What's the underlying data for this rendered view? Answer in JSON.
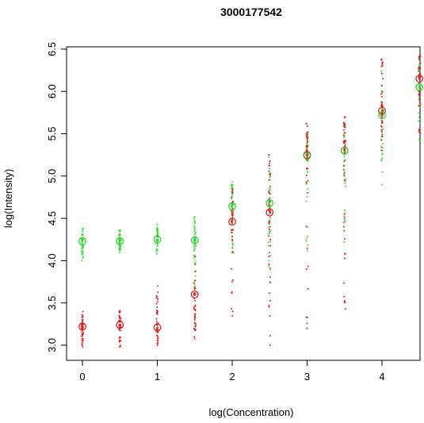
{
  "chart_data": {
    "type": "scatter",
    "title": "3000177542",
    "xlabel": "log(Concentration)",
    "ylabel": "log(Intensity)",
    "xlim": [
      -0.12,
      4.62
    ],
    "ylim": [
      2.93,
      6.5
    ],
    "x_ticks": [
      0,
      1,
      2,
      3,
      4
    ],
    "y_ticks": [
      3.0,
      3.5,
      4.0,
      4.5,
      5.0,
      5.5,
      6.0,
      6.5
    ],
    "x_tick_labels": [
      "0",
      "1",
      "2",
      "3",
      "4"
    ],
    "y_tick_labels": [
      "3.0",
      "3.5",
      "4.0",
      "4.5",
      "5.0",
      "5.5",
      "6.0",
      "6.5"
    ],
    "grid": false,
    "legend": "none",
    "colors": {
      "red": "#e31a1c",
      "green": "#33dd33",
      "axis": "#000000"
    },
    "series": [
      {
        "color": "red",
        "medians": [
          {
            "x": 0.0,
            "y": 3.22
          },
          {
            "x": 0.5,
            "y": 3.24
          },
          {
            "x": 1.0,
            "y": 3.21
          },
          {
            "x": 1.5,
            "y": 3.6
          },
          {
            "x": 2.0,
            "y": 4.46
          },
          {
            "x": 2.5,
            "y": 4.57
          },
          {
            "x": 3.0,
            "y": 5.25
          },
          {
            "x": 3.5,
            "y": 5.3
          },
          {
            "x": 4.0,
            "y": 5.77
          },
          {
            "x": 4.5,
            "y": 6.15
          }
        ],
        "spread": [
          {
            "x": 0.0,
            "min": 2.98,
            "max": 3.4
          },
          {
            "x": 0.5,
            "min": 2.98,
            "max": 3.41
          },
          {
            "x": 1.0,
            "min": 3.0,
            "max": 3.7
          },
          {
            "x": 1.5,
            "min": 3.08,
            "max": 4.05
          },
          {
            "x": 2.0,
            "min": 3.35,
            "max": 4.85
          },
          {
            "x": 2.5,
            "min": 3.0,
            "max": 5.25
          },
          {
            "x": 3.0,
            "min": 3.2,
            "max": 5.62
          },
          {
            "x": 3.5,
            "min": 3.43,
            "max": 5.7
          },
          {
            "x": 4.0,
            "min": 5.3,
            "max": 6.38
          },
          {
            "x": 4.5,
            "min": 5.5,
            "max": 6.43
          }
        ]
      },
      {
        "color": "green",
        "medians": [
          {
            "x": 0.0,
            "y": 4.23
          },
          {
            "x": 0.5,
            "y": 4.23
          },
          {
            "x": 1.0,
            "y": 4.25
          },
          {
            "x": 1.5,
            "y": 4.24
          },
          {
            "x": 2.0,
            "y": 4.64
          },
          {
            "x": 2.5,
            "y": 4.68
          },
          {
            "x": 3.0,
            "y": 5.24
          },
          {
            "x": 3.5,
            "y": 5.3
          },
          {
            "x": 4.0,
            "y": 5.72
          },
          {
            "x": 4.5,
            "y": 6.05
          }
        ],
        "spread": [
          {
            "x": 0.0,
            "min": 4.0,
            "max": 4.38
          },
          {
            "x": 0.5,
            "min": 4.1,
            "max": 4.36
          },
          {
            "x": 1.0,
            "min": 4.08,
            "max": 4.43
          },
          {
            "x": 1.5,
            "min": 3.72,
            "max": 4.52
          },
          {
            "x": 2.0,
            "min": 4.1,
            "max": 4.93
          },
          {
            "x": 2.5,
            "min": 3.75,
            "max": 5.22
          },
          {
            "x": 3.0,
            "min": 4.12,
            "max": 5.5
          },
          {
            "x": 3.5,
            "min": 4.22,
            "max": 5.62
          },
          {
            "x": 4.0,
            "min": 4.9,
            "max": 6.3
          },
          {
            "x": 4.5,
            "min": 5.42,
            "max": 6.4
          }
        ]
      }
    ]
  }
}
